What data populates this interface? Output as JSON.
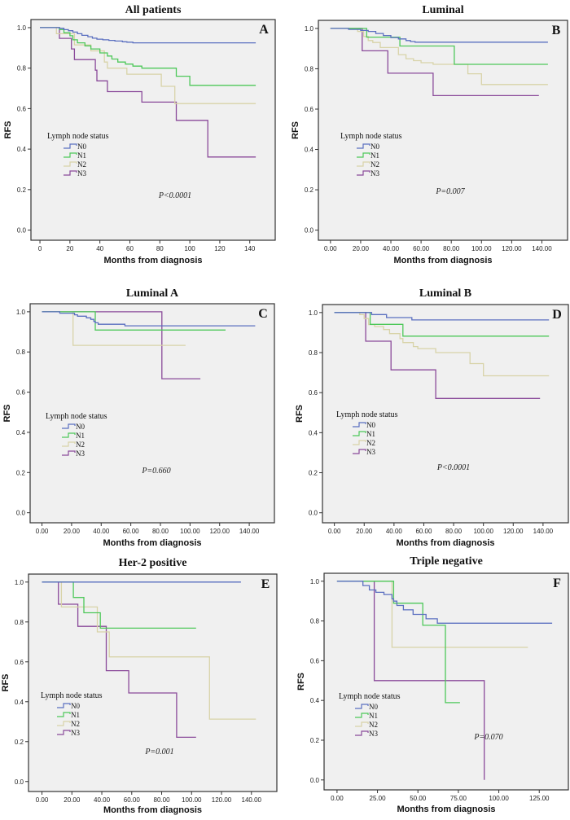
{
  "figure": {
    "colors": {
      "N0": "#5a6fc0",
      "N1": "#4ec85a",
      "N2": "#d8d3a8",
      "N3": "#8a4a9a",
      "plot_bg": "#f0f0f0",
      "frame": "#333333"
    },
    "legend_title": "Lymph node status",
    "legend_items": [
      "N0",
      "N1",
      "N2",
      "N3"
    ]
  },
  "chart_data": [
    {
      "type": "line",
      "panel": "A",
      "title": "All patients",
      "xlabel": "Months from diagnosis",
      "ylabel": "RFS",
      "xlim": [
        -6,
        157
      ],
      "ylim": [
        -0.05,
        1.04
      ],
      "xticks": [
        0,
        20,
        40,
        60,
        80,
        100,
        120,
        140
      ],
      "xtick_labels": [
        "0",
        "20",
        "40",
        "60",
        "80",
        "100",
        "120",
        "140"
      ],
      "yticks": [
        0.0,
        0.2,
        0.4,
        0.6,
        0.8,
        1.0
      ],
      "ytick_labels": [
        "0.0",
        "0.2",
        "0.4",
        "0.6",
        "0.8",
        "1.0"
      ],
      "annotation": "P<0.0001",
      "legend_position": "middle-left",
      "series": [
        {
          "name": "N0",
          "steps": [
            [
              0,
              1.0
            ],
            [
              13,
              0.997
            ],
            [
              16,
              0.99
            ],
            [
              19,
              0.985
            ],
            [
              22,
              0.978
            ],
            [
              25,
              0.97
            ],
            [
              28,
              0.962
            ],
            [
              32,
              0.955
            ],
            [
              35,
              0.948
            ],
            [
              38,
              0.943
            ],
            [
              42,
              0.94
            ],
            [
              46,
              0.937
            ],
            [
              50,
              0.934
            ],
            [
              55,
              0.93
            ],
            [
              58,
              0.928
            ],
            [
              62,
              0.925
            ],
            [
              144,
              0.925
            ]
          ]
        },
        {
          "name": "N1",
          "steps": [
            [
              0,
              1.0
            ],
            [
              13,
              0.99
            ],
            [
              16,
              0.975
            ],
            [
              20,
              0.96
            ],
            [
              22,
              0.94
            ],
            [
              25,
              0.925
            ],
            [
              30,
              0.91
            ],
            [
              34,
              0.895
            ],
            [
              40,
              0.875
            ],
            [
              45,
              0.86
            ],
            [
              48,
              0.845
            ],
            [
              52,
              0.83
            ],
            [
              57,
              0.82
            ],
            [
              62,
              0.81
            ],
            [
              68,
              0.8
            ],
            [
              91,
              0.76
            ],
            [
              100,
              0.715
            ],
            [
              144,
              0.715
            ]
          ]
        },
        {
          "name": "N2",
          "steps": [
            [
              0,
              1.0
            ],
            [
              11,
              0.97
            ],
            [
              23,
              0.915
            ],
            [
              34,
              0.885
            ],
            [
              43,
              0.83
            ],
            [
              45,
              0.8
            ],
            [
              58,
              0.77
            ],
            [
              81,
              0.71
            ],
            [
              90,
              0.625
            ],
            [
              144,
              0.625
            ]
          ]
        },
        {
          "name": "N3",
          "steps": [
            [
              0,
              1.0
            ],
            [
              13,
              0.947
            ],
            [
              21,
              0.895
            ],
            [
              23,
              0.842
            ],
            [
              37,
              0.79
            ],
            [
              38,
              0.737
            ],
            [
              45,
              0.684
            ],
            [
              68,
              0.632
            ],
            [
              91,
              0.542
            ],
            [
              112,
              0.361
            ],
            [
              144,
              0.361
            ]
          ]
        }
      ]
    },
    {
      "type": "line",
      "panel": "B",
      "title": "Luminal",
      "xlabel": "Months from diagnosis",
      "ylabel": "RFS",
      "xlim": [
        -8,
        157
      ],
      "ylim": [
        -0.05,
        1.04
      ],
      "xticks": [
        0,
        20,
        40,
        60,
        80,
        100,
        120,
        140
      ],
      "xtick_labels": [
        "0.00",
        "20.00",
        "40.00",
        "60.00",
        "80.00",
        "100.00",
        "120.00",
        "140.00"
      ],
      "yticks": [
        0.0,
        0.2,
        0.4,
        0.6,
        0.8,
        1.0
      ],
      "ytick_labels": [
        "0.0",
        "0.2",
        "0.4",
        "0.6",
        "0.8",
        "1.0"
      ],
      "annotation": "P=0.007",
      "legend_position": "middle-left",
      "series": [
        {
          "name": "N0",
          "steps": [
            [
              0,
              1.0
            ],
            [
              12,
              0.995
            ],
            [
              20,
              0.99
            ],
            [
              25,
              0.985
            ],
            [
              30,
              0.975
            ],
            [
              35,
              0.965
            ],
            [
              40,
              0.955
            ],
            [
              45,
              0.948
            ],
            [
              50,
              0.94
            ],
            [
              53,
              0.935
            ],
            [
              56,
              0.932
            ],
            [
              144,
              0.932
            ]
          ]
        },
        {
          "name": "N1",
          "steps": [
            [
              0,
              1.0
            ],
            [
              24,
              0.957
            ],
            [
              46,
              0.913
            ],
            [
              82,
              0.822
            ],
            [
              144,
              0.822
            ]
          ]
        },
        {
          "name": "N2",
          "steps": [
            [
              0,
              1.0
            ],
            [
              18,
              0.985
            ],
            [
              22,
              0.96
            ],
            [
              25,
              0.94
            ],
            [
              28,
              0.93
            ],
            [
              33,
              0.905
            ],
            [
              45,
              0.87
            ],
            [
              50,
              0.85
            ],
            [
              55,
              0.84
            ],
            [
              60,
              0.83
            ],
            [
              68,
              0.822
            ],
            [
              91,
              0.775
            ],
            [
              100,
              0.722
            ],
            [
              144,
              0.722
            ]
          ]
        },
        {
          "name": "N3",
          "steps": [
            [
              0,
              1.0
            ],
            [
              21,
              0.889
            ],
            [
              38,
              0.778
            ],
            [
              68,
              0.667
            ],
            [
              138,
              0.667
            ]
          ]
        }
      ]
    },
    {
      "type": "line",
      "panel": "C",
      "title": "Luminal A",
      "xlabel": "Months from diagnosis",
      "ylabel": "RFS",
      "xlim": [
        -8,
        157
      ],
      "ylim": [
        -0.05,
        1.04
      ],
      "xticks": [
        0,
        20,
        40,
        60,
        80,
        100,
        120,
        140
      ],
      "xtick_labels": [
        "0.00",
        "20.00",
        "40.00",
        "60.00",
        "80.00",
        "100.00",
        "120.00",
        "140.00"
      ],
      "yticks": [
        0.0,
        0.2,
        0.4,
        0.6,
        0.8,
        1.0
      ],
      "ytick_labels": [
        "0.0",
        "0.2",
        "0.4",
        "0.6",
        "0.8",
        "1.0"
      ],
      "annotation": "P=0.660",
      "legend_position": "middle-left",
      "series": [
        {
          "name": "N0",
          "steps": [
            [
              0,
              1.0
            ],
            [
              12,
              0.993
            ],
            [
              22,
              0.985
            ],
            [
              24,
              0.978
            ],
            [
              30,
              0.97
            ],
            [
              33,
              0.962
            ],
            [
              35,
              0.952
            ],
            [
              36,
              0.945
            ],
            [
              38,
              0.938
            ],
            [
              56,
              0.93
            ],
            [
              144,
              0.93
            ]
          ]
        },
        {
          "name": "N1",
          "steps": [
            [
              0,
              1.0
            ],
            [
              36,
              0.909
            ],
            [
              124,
              0.909
            ]
          ]
        },
        {
          "name": "N2",
          "steps": [
            [
              0,
              1.0
            ],
            [
              21,
              0.833
            ],
            [
              97,
              0.833
            ]
          ]
        },
        {
          "name": "N3",
          "steps": [
            [
              0,
              1.0
            ],
            [
              81,
              0.667
            ],
            [
              107,
              0.667
            ]
          ]
        }
      ]
    },
    {
      "type": "line",
      "panel": "D",
      "title": "Luminal B",
      "xlabel": "Months from diagnosis",
      "ylabel": "RFS",
      "xlim": [
        -8,
        157
      ],
      "ylim": [
        -0.05,
        1.04
      ],
      "xticks": [
        0,
        20,
        40,
        60,
        80,
        100,
        120,
        140
      ],
      "xtick_labels": [
        "0.00",
        "20.00",
        "40.00",
        "60.00",
        "80.00",
        "100.00",
        "120.00",
        "140.00"
      ],
      "yticks": [
        0.0,
        0.2,
        0.4,
        0.6,
        0.8,
        1.0
      ],
      "ytick_labels": [
        "0.0",
        "0.2",
        "0.4",
        "0.6",
        "0.8",
        "1.0"
      ],
      "annotation": "P<0.0001",
      "legend_position": "middle-left",
      "series": [
        {
          "name": "N0",
          "steps": [
            [
              0,
              1.0
            ],
            [
              25,
              0.99
            ],
            [
              35,
              0.975
            ],
            [
              52,
              0.963
            ],
            [
              144,
              0.963
            ]
          ]
        },
        {
          "name": "N1",
          "steps": [
            [
              0,
              1.0
            ],
            [
              24,
              0.941
            ],
            [
              46,
              0.882
            ],
            [
              144,
              0.882
            ]
          ]
        },
        {
          "name": "N2",
          "steps": [
            [
              0,
              1.0
            ],
            [
              17,
              0.99
            ],
            [
              20,
              0.97
            ],
            [
              23,
              0.94
            ],
            [
              27,
              0.93
            ],
            [
              33,
              0.915
            ],
            [
              37,
              0.895
            ],
            [
              44,
              0.87
            ],
            [
              46,
              0.85
            ],
            [
              53,
              0.83
            ],
            [
              56,
              0.82
            ],
            [
              68,
              0.8
            ],
            [
              91,
              0.745
            ],
            [
              100,
              0.684
            ],
            [
              144,
              0.684
            ]
          ]
        },
        {
          "name": "N3",
          "steps": [
            [
              0,
              1.0
            ],
            [
              21,
              0.857
            ],
            [
              38,
              0.714
            ],
            [
              68,
              0.571
            ],
            [
              138,
              0.571
            ]
          ]
        }
      ]
    },
    {
      "type": "line",
      "panel": "E",
      "title": "Her-2 positive",
      "xlabel": "Months from diagnosis",
      "ylabel": "RFS",
      "xlim": [
        -9,
        157
      ],
      "ylim": [
        -0.05,
        1.04
      ],
      "xticks": [
        0,
        20,
        40,
        60,
        80,
        100,
        120,
        140
      ],
      "xtick_labels": [
        "0.00",
        "20.00",
        "40.00",
        "60.00",
        "80.00",
        "100.00",
        "120.00",
        "140.00"
      ],
      "yticks": [
        0.0,
        0.2,
        0.4,
        0.6,
        0.8,
        1.0
      ],
      "ytick_labels": [
        "0.0",
        "0.2",
        "0.4",
        "0.6",
        "0.8",
        "1.0"
      ],
      "annotation": "P=0.001",
      "legend_position": "middle-left",
      "series": [
        {
          "name": "N0",
          "steps": [
            [
              0,
              1.0
            ],
            [
              133,
              1.0
            ]
          ]
        },
        {
          "name": "N1",
          "steps": [
            [
              0,
              1.0
            ],
            [
              21,
              0.923
            ],
            [
              28,
              0.846
            ],
            [
              39,
              0.769
            ],
            [
              103,
              0.769
            ]
          ]
        },
        {
          "name": "N2",
          "steps": [
            [
              0,
              1.0
            ],
            [
              13,
              0.875
            ],
            [
              37,
              0.75
            ],
            [
              45,
              0.625
            ],
            [
              112,
              0.313
            ],
            [
              143,
              0.313
            ]
          ]
        },
        {
          "name": "N3",
          "steps": [
            [
              0,
              1.0
            ],
            [
              11,
              0.889
            ],
            [
              24,
              0.778
            ],
            [
              43,
              0.556
            ],
            [
              58,
              0.444
            ],
            [
              90,
              0.222
            ],
            [
              103,
              0.222
            ]
          ]
        }
      ]
    },
    {
      "type": "line",
      "panel": "F",
      "title": "Triple negative",
      "xlabel": "Months from diagnosis",
      "ylabel": "RFS",
      "xlim": [
        -8,
        143
      ],
      "ylim": [
        -0.05,
        1.04
      ],
      "xticks": [
        0,
        25,
        50,
        75,
        100,
        125
      ],
      "xtick_labels": [
        "0.00",
        "25.00",
        "50.00",
        "75.00",
        "100.00",
        "125.00"
      ],
      "yticks": [
        0.0,
        0.2,
        0.4,
        0.6,
        0.8,
        1.0
      ],
      "ytick_labels": [
        "0.0",
        "0.2",
        "0.4",
        "0.6",
        "0.8",
        "1.0"
      ],
      "annotation": "P=0.070",
      "legend_position": "middle-left",
      "series": [
        {
          "name": "N0",
          "steps": [
            [
              0,
              1.0
            ],
            [
              16,
              0.978
            ],
            [
              20,
              0.956
            ],
            [
              24,
              0.944
            ],
            [
              29,
              0.933
            ],
            [
              34,
              0.911
            ],
            [
              35,
              0.9
            ],
            [
              37,
              0.878
            ],
            [
              41,
              0.856
            ],
            [
              47,
              0.833
            ],
            [
              55,
              0.811
            ],
            [
              62,
              0.789
            ],
            [
              133,
              0.789
            ]
          ]
        },
        {
          "name": "N1",
          "steps": [
            [
              0,
              1.0
            ],
            [
              35,
              0.889
            ],
            [
              53,
              0.778
            ],
            [
              67,
              0.389
            ],
            [
              76,
              0.389
            ]
          ]
        },
        {
          "name": "N2",
          "steps": [
            [
              0,
              1.0
            ],
            [
              34,
              0.667
            ],
            [
              118,
              0.667
            ]
          ]
        },
        {
          "name": "N3",
          "steps": [
            [
              0,
              1.0
            ],
            [
              23,
              0.5
            ],
            [
              91,
              0.5
            ],
            [
              91,
              0.0
            ]
          ]
        }
      ]
    }
  ]
}
